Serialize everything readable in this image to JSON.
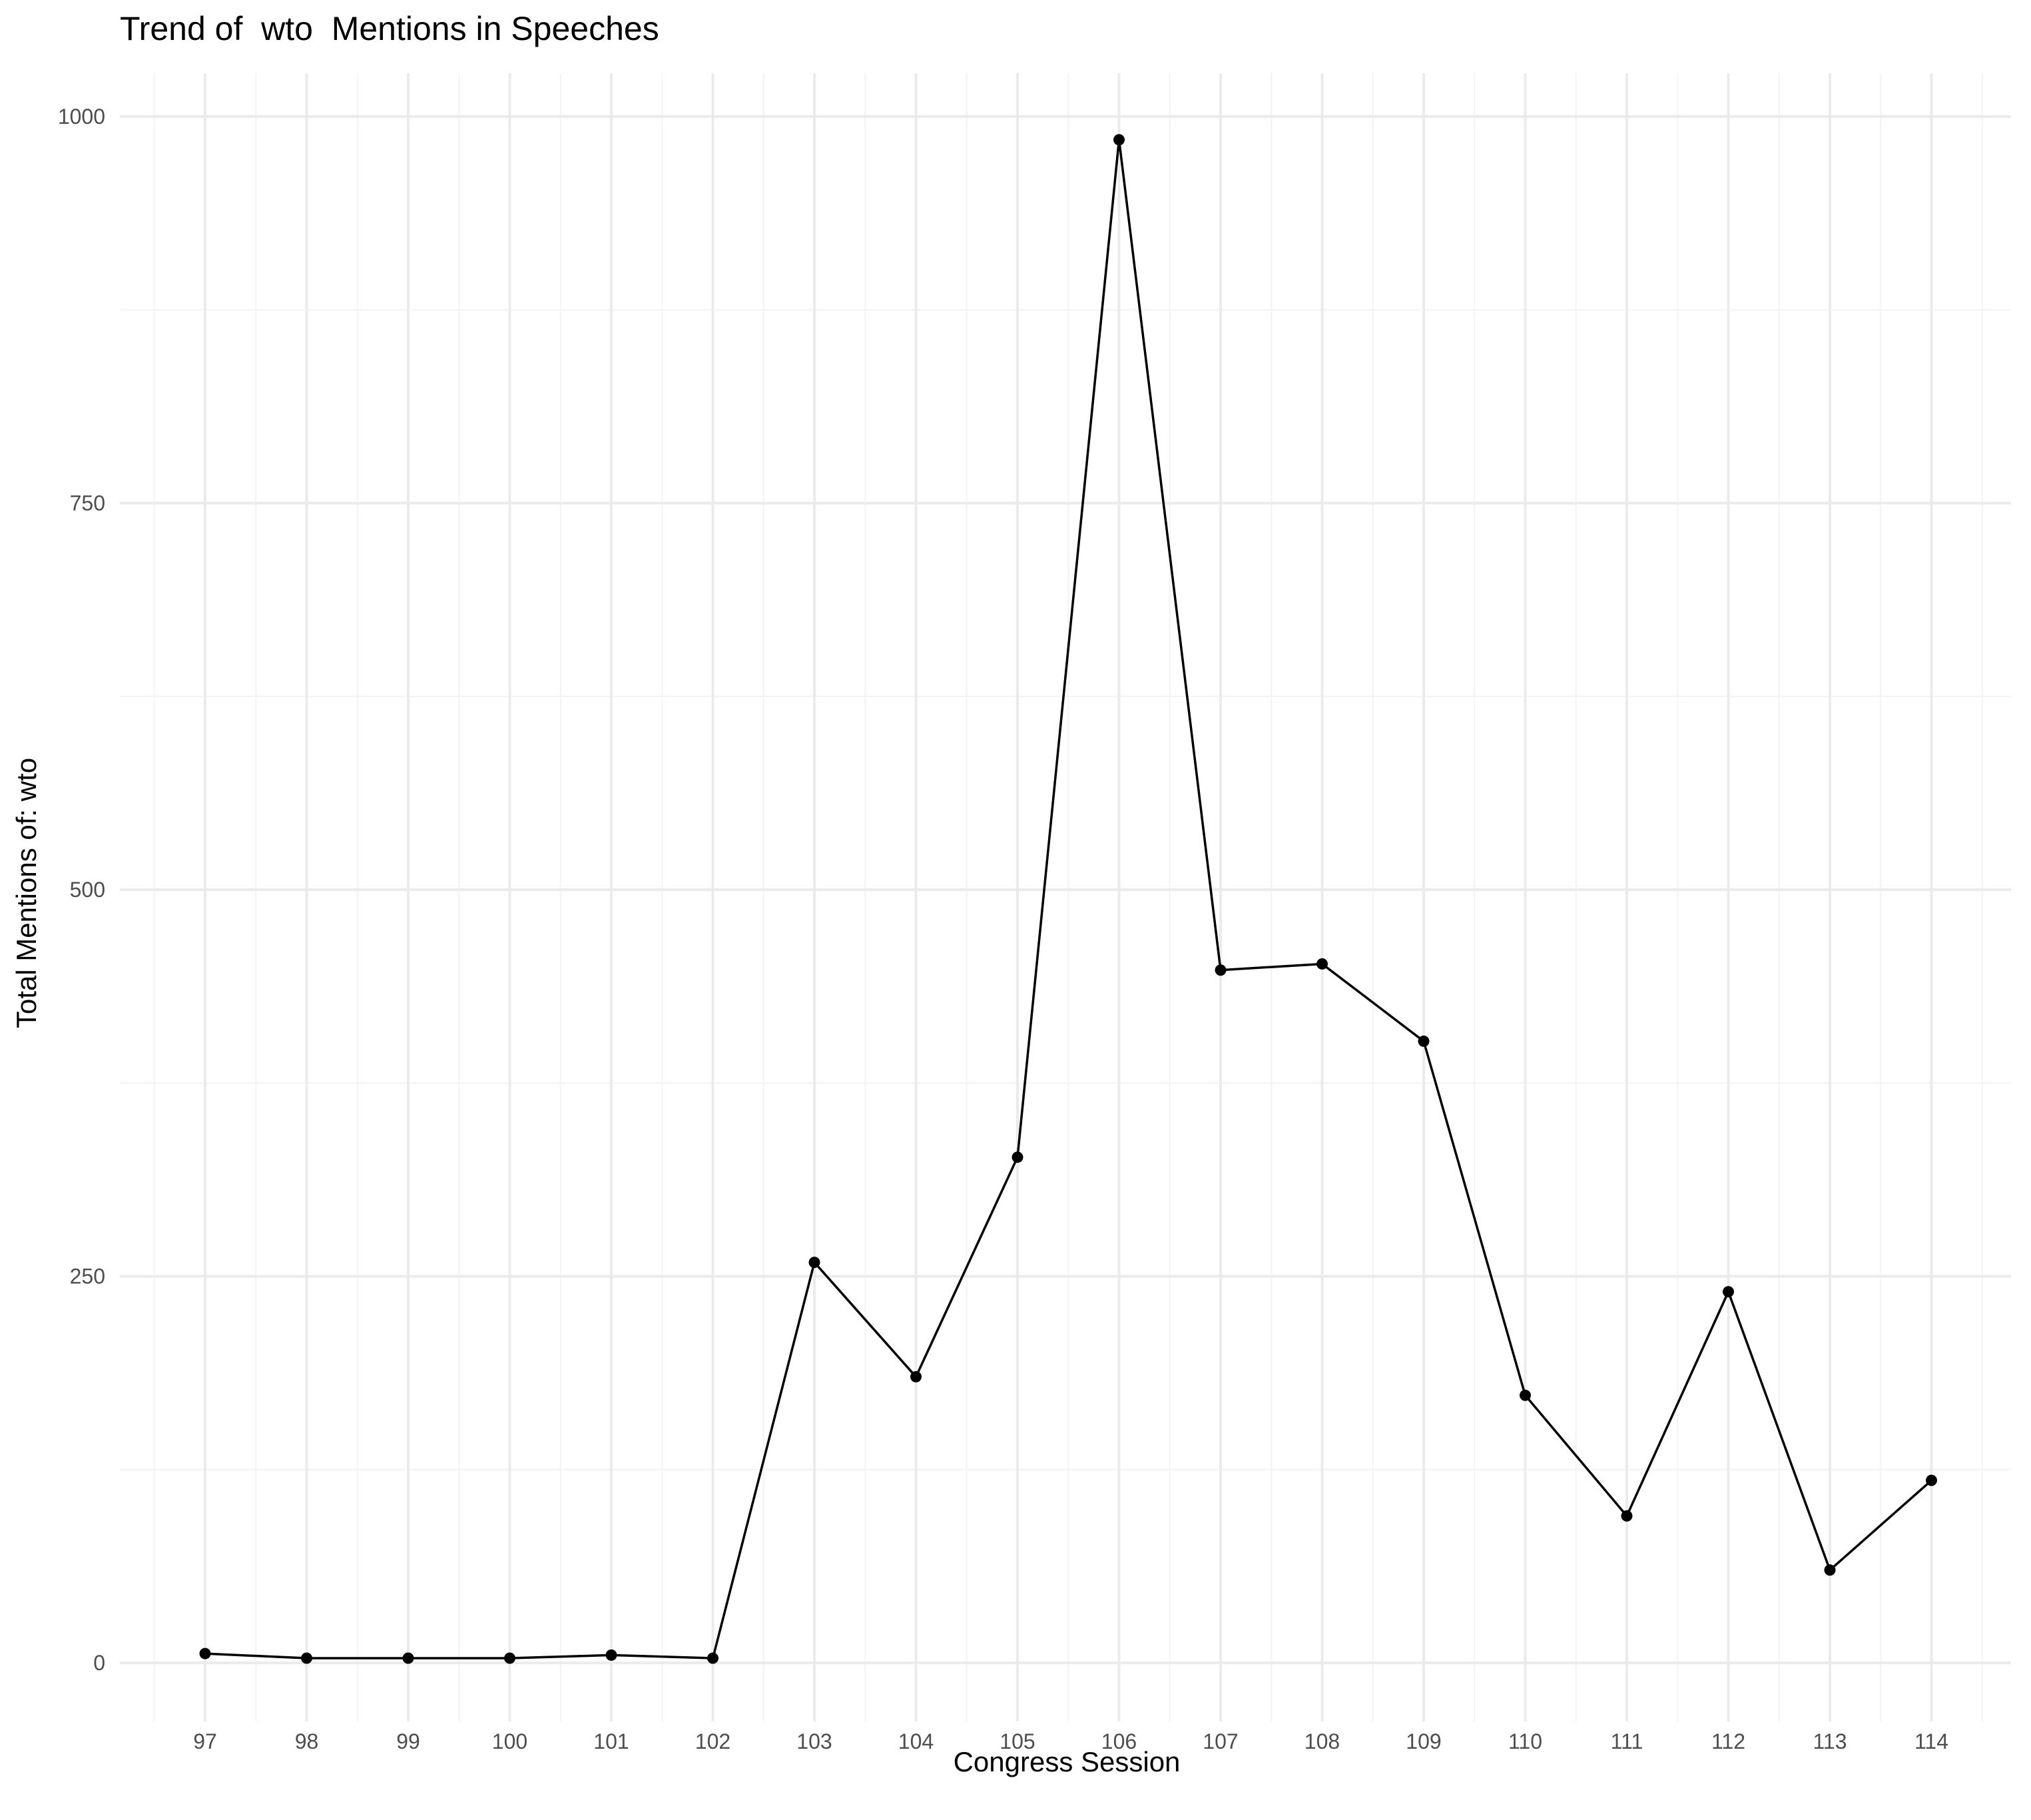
{
  "chart_data": {
    "type": "line",
    "title": "Trend of  wto  Mentions in Speeches",
    "xlabel": "Congress Session",
    "ylabel": "Total Mentions of: wto",
    "categories": [
      "97",
      "98",
      "99",
      "100",
      "101",
      "102",
      "103",
      "104",
      "105",
      "106",
      "107",
      "108",
      "109",
      "110",
      "111",
      "112",
      "113",
      "114"
    ],
    "series": [
      {
        "values": [
          6,
          3,
          3,
          3,
          5,
          3,
          259,
          185,
          327,
          985,
          448,
          452,
          402,
          173,
          95,
          240,
          60,
          118
        ]
      }
    ],
    "ylim": [
      -38,
      1015
    ],
    "yticks": [
      0,
      250,
      500,
      750,
      1000
    ],
    "ytick_labels": [
      "0",
      "250",
      "500",
      "750",
      "1000"
    ],
    "grid": true,
    "legend": "none",
    "line_color": "#000000"
  }
}
